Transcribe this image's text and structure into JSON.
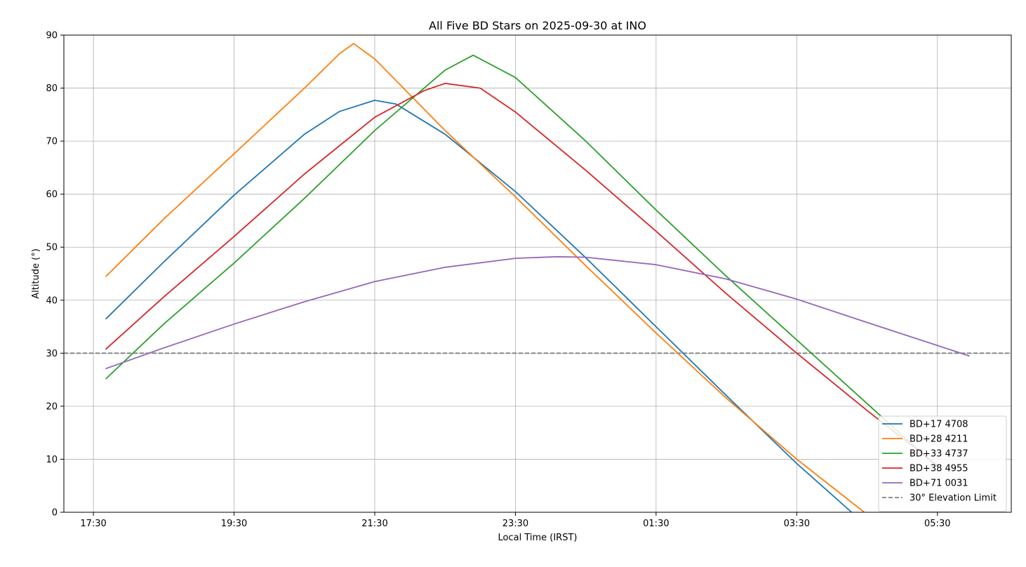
{
  "chart_data": {
    "type": "line",
    "title": "All Five BD Stars on 2025-09-30 at INO",
    "xlabel": "Local Time (IRST)",
    "ylabel": "Altitude (°)",
    "x_unit": "hours after 17:30 local time",
    "xlim": [
      -0.42,
      13.05
    ],
    "ylim": [
      0,
      90
    ],
    "x_ticks": [
      0,
      2,
      4,
      6,
      8,
      10,
      12
    ],
    "x_tick_labels": [
      "17:30",
      "19:30",
      "21:30",
      "23:30",
      "01:30",
      "03:30",
      "05:30"
    ],
    "y_ticks": [
      0,
      10,
      20,
      30,
      40,
      50,
      60,
      70,
      80,
      90
    ],
    "grid": true,
    "legend_position": "bottom-right",
    "series": [
      {
        "name": "BD+17 4708",
        "color": "#1f77b4",
        "x": [
          0.18,
          1,
          2,
          3,
          3.5,
          4,
          4.3,
          5,
          6,
          7,
          8,
          9,
          10,
          10.78
        ],
        "y": [
          36.5,
          47.2,
          59.8,
          71.3,
          75.6,
          77.7,
          77.0,
          71.3,
          60.5,
          48.0,
          35.0,
          22.0,
          9.2,
          0
        ]
      },
      {
        "name": "BD+28 4211",
        "color": "#ff7f0e",
        "x": [
          0.18,
          1,
          2,
          3,
          3.5,
          3.7,
          4,
          5,
          6,
          7,
          8,
          9,
          10,
          10.96
        ],
        "y": [
          44.5,
          55.3,
          67.6,
          80.0,
          86.5,
          88.4,
          85.5,
          72.0,
          59.5,
          46.5,
          33.8,
          21.5,
          10.0,
          0
        ]
      },
      {
        "name": "BD+33 4737",
        "color": "#2ca02c",
        "x": [
          0.18,
          1,
          2,
          3,
          4,
          5,
          5.4,
          6,
          7,
          8,
          9,
          10,
          11,
          12
        ],
        "y": [
          25.2,
          35.5,
          47.0,
          59.2,
          72.0,
          83.4,
          86.2,
          82.0,
          70.0,
          57.0,
          44.5,
          32.5,
          20.5,
          8.5
        ]
      },
      {
        "name": "BD+38 4955",
        "color": "#d62728",
        "x": [
          0.18,
          1,
          2,
          3,
          4,
          4.7,
          5,
          5.5,
          6,
          7,
          8,
          9,
          10,
          11,
          12
        ],
        "y": [
          30.8,
          40.6,
          52.0,
          63.8,
          74.5,
          79.5,
          80.9,
          80.0,
          75.5,
          64.5,
          53.0,
          41.2,
          30.0,
          19.2,
          8.8
        ]
      },
      {
        "name": "BD+71 0031",
        "color": "#9467bd",
        "x": [
          0.18,
          1,
          2,
          3,
          4,
          5,
          6,
          6.6,
          7,
          8,
          9,
          10,
          11,
          12.45
        ],
        "y": [
          27.1,
          31.0,
          35.5,
          39.7,
          43.5,
          46.2,
          47.9,
          48.2,
          48.1,
          46.7,
          44.0,
          40.2,
          35.8,
          29.5
        ]
      }
    ],
    "reference_line": {
      "name": "30° Elevation Limit",
      "y": 30,
      "color": "#808080",
      "style": "dashed"
    }
  }
}
